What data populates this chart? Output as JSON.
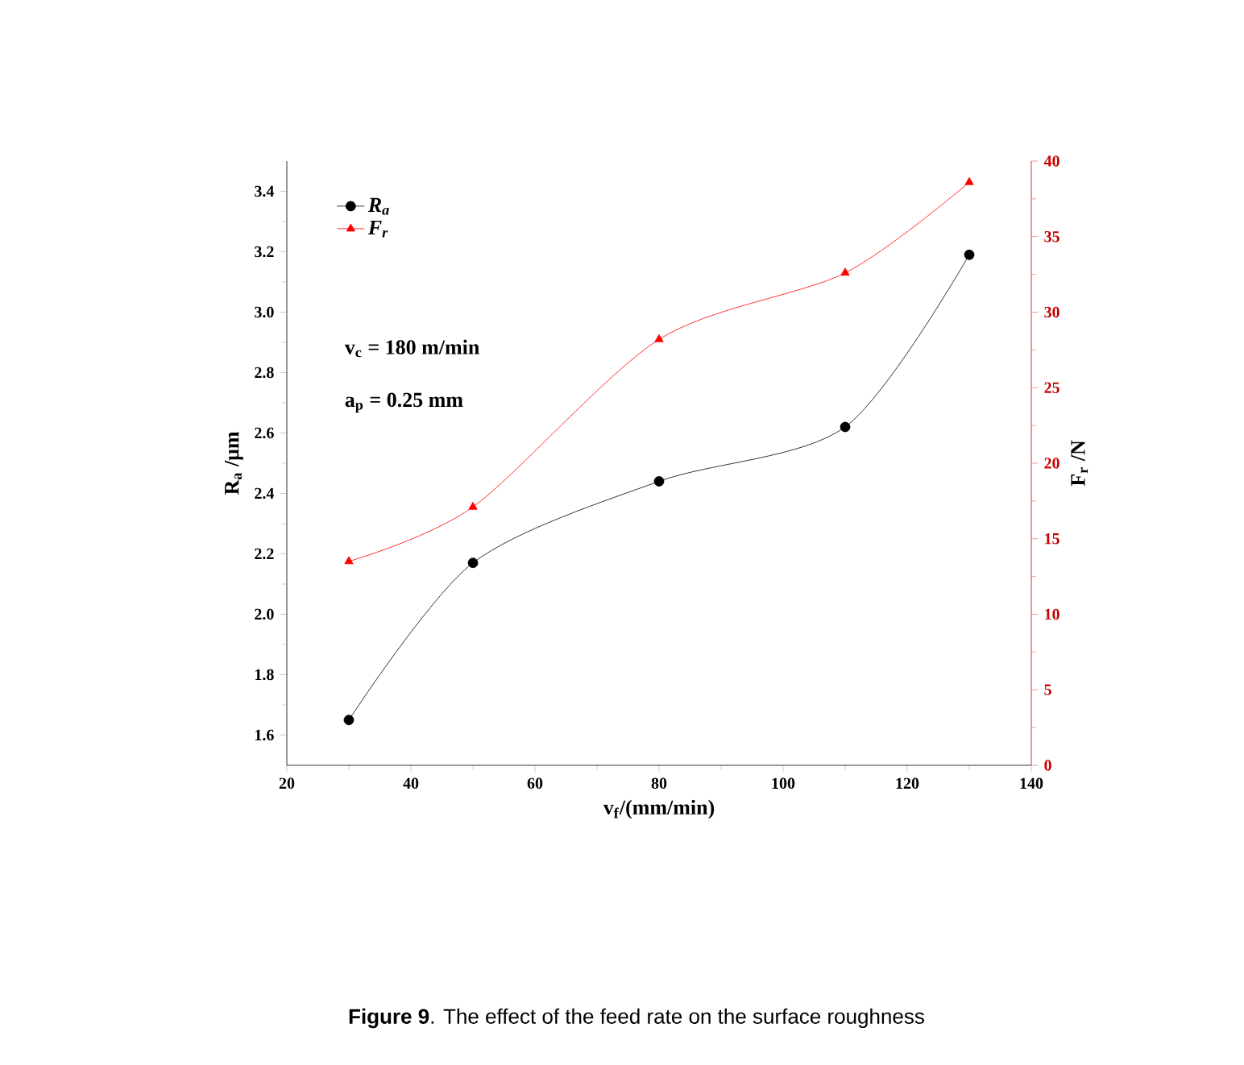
{
  "chart_data": {
    "type": "line",
    "xlabel": "v$_{f}$/(mm/min)",
    "ylabel": "R$_{a}$ /μm",
    "y2label": "F$_{r}$ /N",
    "x": [
      30,
      50,
      80,
      110,
      130
    ],
    "series": [
      {
        "name": "R$_{a}$",
        "color": "#000000",
        "marker": "circle",
        "values": [
          1.65,
          2.17,
          2.44,
          2.62,
          3.19
        ]
      },
      {
        "name": "F$_{r}$",
        "color": "#ff0000",
        "marker": "triangle",
        "axis": "y2",
        "values": [
          13.5,
          17.1,
          28.2,
          32.6,
          38.6
        ]
      }
    ],
    "xlim": [
      20,
      140
    ],
    "xticks": [
      20,
      40,
      60,
      80,
      100,
      120,
      140
    ],
    "ylim": [
      1.5,
      3.5
    ],
    "yticks": [
      1.6,
      1.8,
      {
        "value": 2.0,
        "label": "2.0"
      },
      2.2,
      2.4,
      2.6,
      2.8,
      {
        "value": 3.0,
        "label": "3.0"
      },
      3.2,
      3.4
    ],
    "y2lim": [
      0,
      40
    ],
    "y2ticks": [
      0,
      5,
      10,
      15,
      20,
      25,
      30,
      35,
      40
    ],
    "legend": "top left",
    "annotations": [
      "v$_{c}$ = 180 m/min",
      "a$_{p}$ = 0.25 mm",
      "**Figure 9**. The effect of the feed rate on the surface roughness"
    ]
  }
}
